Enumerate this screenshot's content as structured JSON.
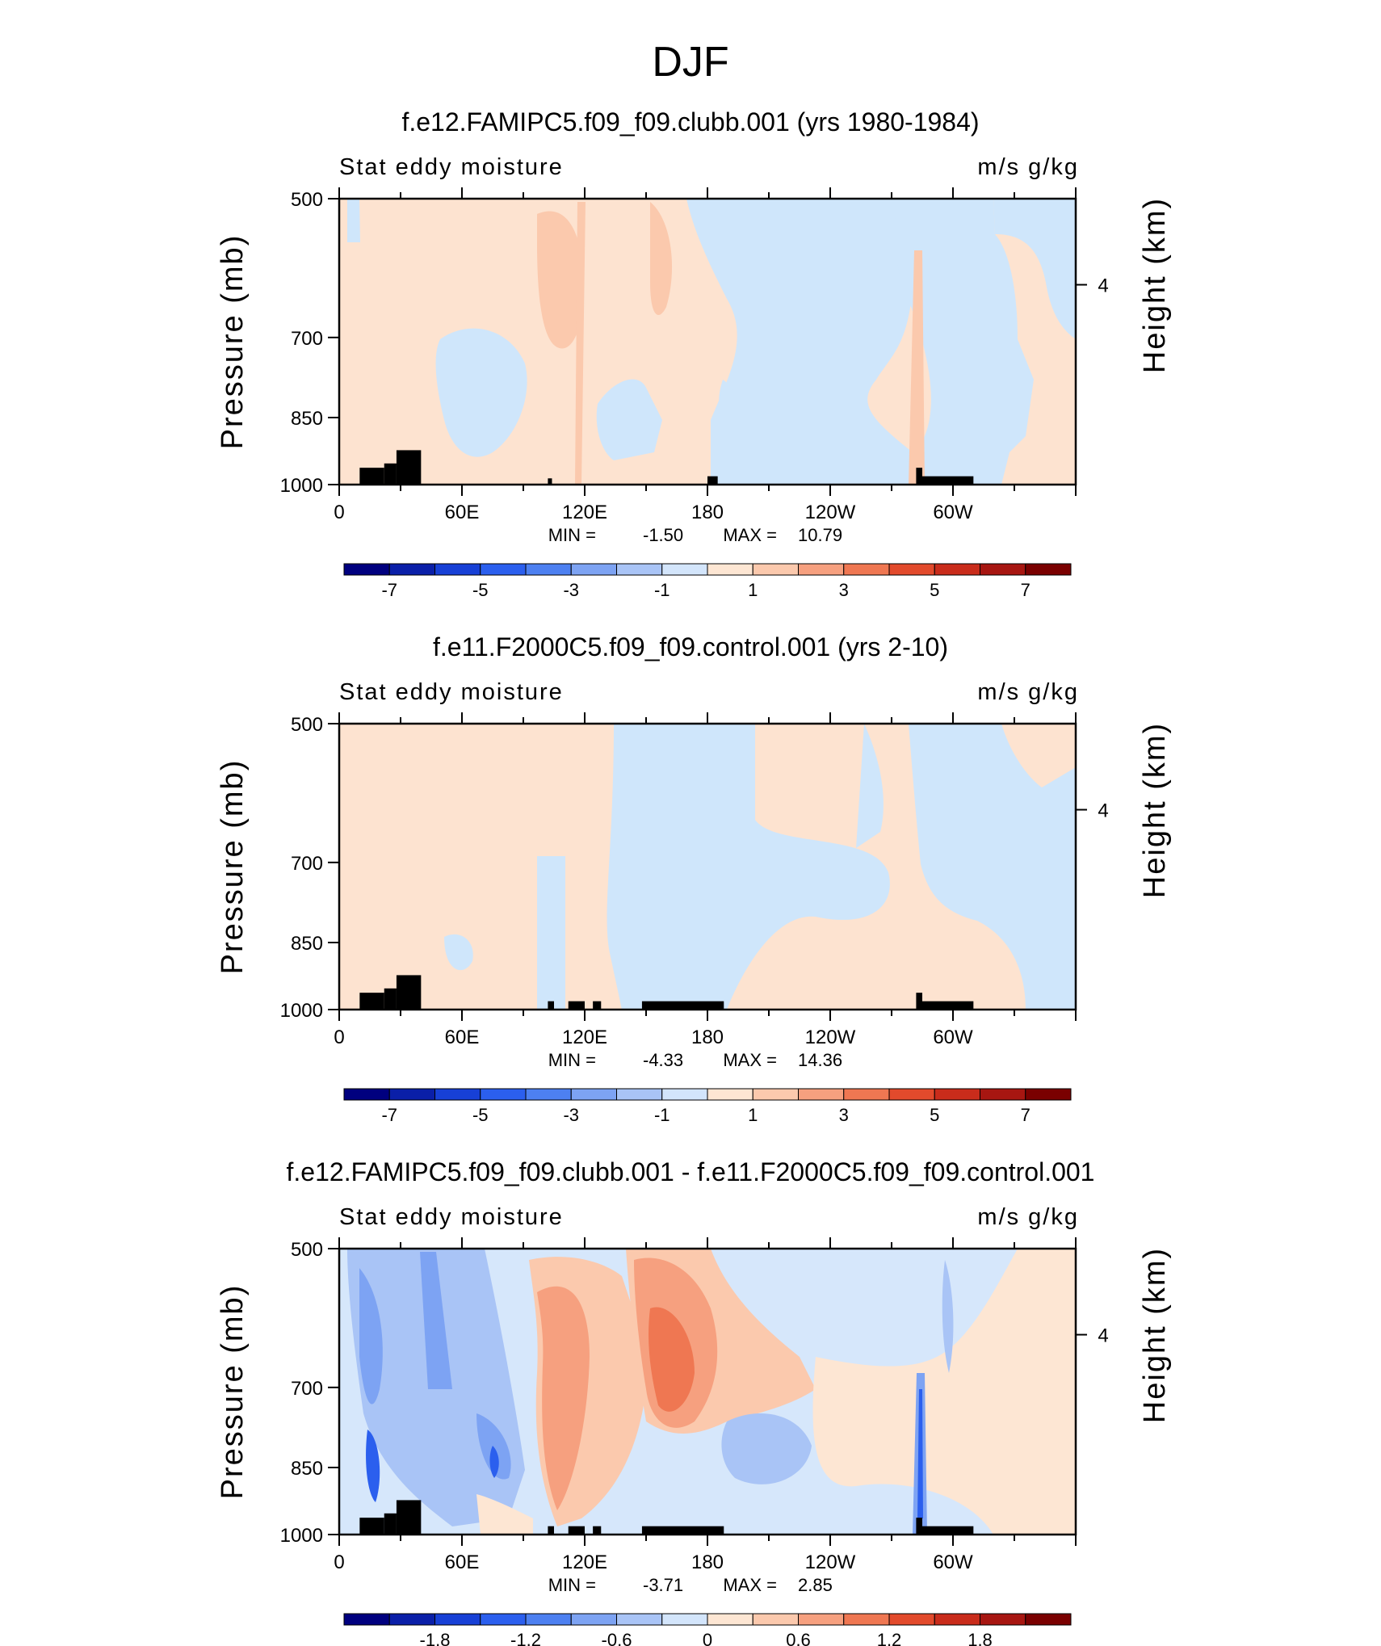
{
  "page_title": "DJF",
  "colors": {
    "below": "#cfe6fb",
    "above": "#fde3d0",
    "terrain": "#000000",
    "frame": "#000000"
  },
  "colorbar_palette": [
    "#00007f",
    "#0a1fa8",
    "#1740d6",
    "#2b5fee",
    "#4d80f1",
    "#7da3f3",
    "#a9c4f6",
    "#d3e5fb",
    "#fde6d3",
    "#fbc9ad",
    "#f6a07f",
    "#ef7752",
    "#e24a2c",
    "#c92c1b",
    "#a71611",
    "#7a0000"
  ],
  "chart_data": [
    {
      "type": "contour",
      "title": "f.e12.FAMIPC5.f09_f09.clubb.001 (yrs 1980-1984)",
      "left_label": "Stat eddy moisture",
      "right_label": "m/s g/kg",
      "ylabel": "Pressure (mb)",
      "ylabel_right": "Height (km)",
      "y_ticks": [
        "500",
        "700",
        "850",
        "1000"
      ],
      "y_tick_values": [
        500,
        700,
        850,
        1000
      ],
      "y_right_ticks": [
        "4"
      ],
      "y_right_tick_values": [
        4
      ],
      "x_ticks": [
        "0",
        "60E",
        "120E",
        "180",
        "120W",
        "60W"
      ],
      "x_tick_values": [
        0,
        60,
        120,
        180,
        240,
        300
      ],
      "xlim": [
        0,
        360
      ],
      "ylim": [
        1000,
        500
      ],
      "min_label": "MIN =",
      "min_value": "-1.50",
      "max_label": "MAX =",
      "max_value": "10.79",
      "colorbar_labels": [
        "-7",
        "-5",
        "-3",
        "-1",
        "1",
        "3",
        "5",
        "7"
      ],
      "terrain_lon": [
        [
          10,
          22
        ],
        [
          22,
          28
        ],
        [
          28,
          40
        ],
        [
          102,
          104
        ],
        [
          180,
          185
        ],
        [
          282,
          285
        ],
        [
          285,
          310
        ]
      ],
      "terrain_top": [
        960,
        950,
        920,
        985,
        980,
        960,
        980
      ]
    },
    {
      "type": "contour",
      "title": "f.e11.F2000C5.f09_f09.control.001 (yrs 2-10)",
      "left_label": "Stat eddy moisture",
      "right_label": "m/s g/kg",
      "ylabel": "Pressure (mb)",
      "ylabel_right": "Height (km)",
      "y_ticks": [
        "500",
        "700",
        "850",
        "1000"
      ],
      "y_tick_values": [
        500,
        700,
        850,
        1000
      ],
      "y_right_ticks": [
        "4"
      ],
      "y_right_tick_values": [
        4
      ],
      "x_ticks": [
        "0",
        "60E",
        "120E",
        "180",
        "120W",
        "60W"
      ],
      "x_tick_values": [
        0,
        60,
        120,
        180,
        240,
        300
      ],
      "xlim": [
        0,
        360
      ],
      "ylim": [
        1000,
        500
      ],
      "min_label": "MIN =",
      "min_value": "-4.33",
      "max_label": "MAX =",
      "max_value": "14.36",
      "colorbar_labels": [
        "-7",
        "-5",
        "-3",
        "-1",
        "1",
        "3",
        "5",
        "7"
      ],
      "terrain_lon": [
        [
          10,
          22
        ],
        [
          22,
          28
        ],
        [
          28,
          40
        ],
        [
          102,
          105
        ],
        [
          112,
          120
        ],
        [
          124,
          128
        ],
        [
          148,
          188
        ],
        [
          282,
          285
        ],
        [
          285,
          310
        ]
      ],
      "terrain_top": [
        960,
        950,
        920,
        980,
        980,
        980,
        980,
        960,
        980
      ]
    },
    {
      "type": "contour",
      "title": "f.e12.FAMIPC5.f09_f09.clubb.001 - f.e11.F2000C5.f09_f09.control.001",
      "left_label": "Stat eddy moisture",
      "right_label": "m/s g/kg",
      "ylabel": "Pressure (mb)",
      "ylabel_right": "Height (km)",
      "y_ticks": [
        "500",
        "700",
        "850",
        "1000"
      ],
      "y_tick_values": [
        500,
        700,
        850,
        1000
      ],
      "y_right_ticks": [
        "4"
      ],
      "y_right_tick_values": [
        4
      ],
      "x_ticks": [
        "0",
        "60E",
        "120E",
        "180",
        "120W",
        "60W"
      ],
      "x_tick_values": [
        0,
        60,
        120,
        180,
        240,
        300
      ],
      "xlim": [
        0,
        360
      ],
      "ylim": [
        1000,
        500
      ],
      "min_label": "MIN =",
      "min_value": "-3.71",
      "max_label": "MAX =",
      "max_value": "2.85",
      "colorbar_labels": [
        "-1.8",
        "-1.2",
        "-0.6",
        "0",
        "0.6",
        "1.2",
        "1.8"
      ],
      "terrain_lon": [
        [
          10,
          22
        ],
        [
          22,
          28
        ],
        [
          28,
          40
        ],
        [
          102,
          105
        ],
        [
          112,
          120
        ],
        [
          124,
          128
        ],
        [
          148,
          188
        ],
        [
          282,
          285
        ],
        [
          285,
          310
        ]
      ],
      "terrain_top": [
        960,
        950,
        920,
        980,
        980,
        980,
        980,
        960,
        980
      ]
    }
  ]
}
